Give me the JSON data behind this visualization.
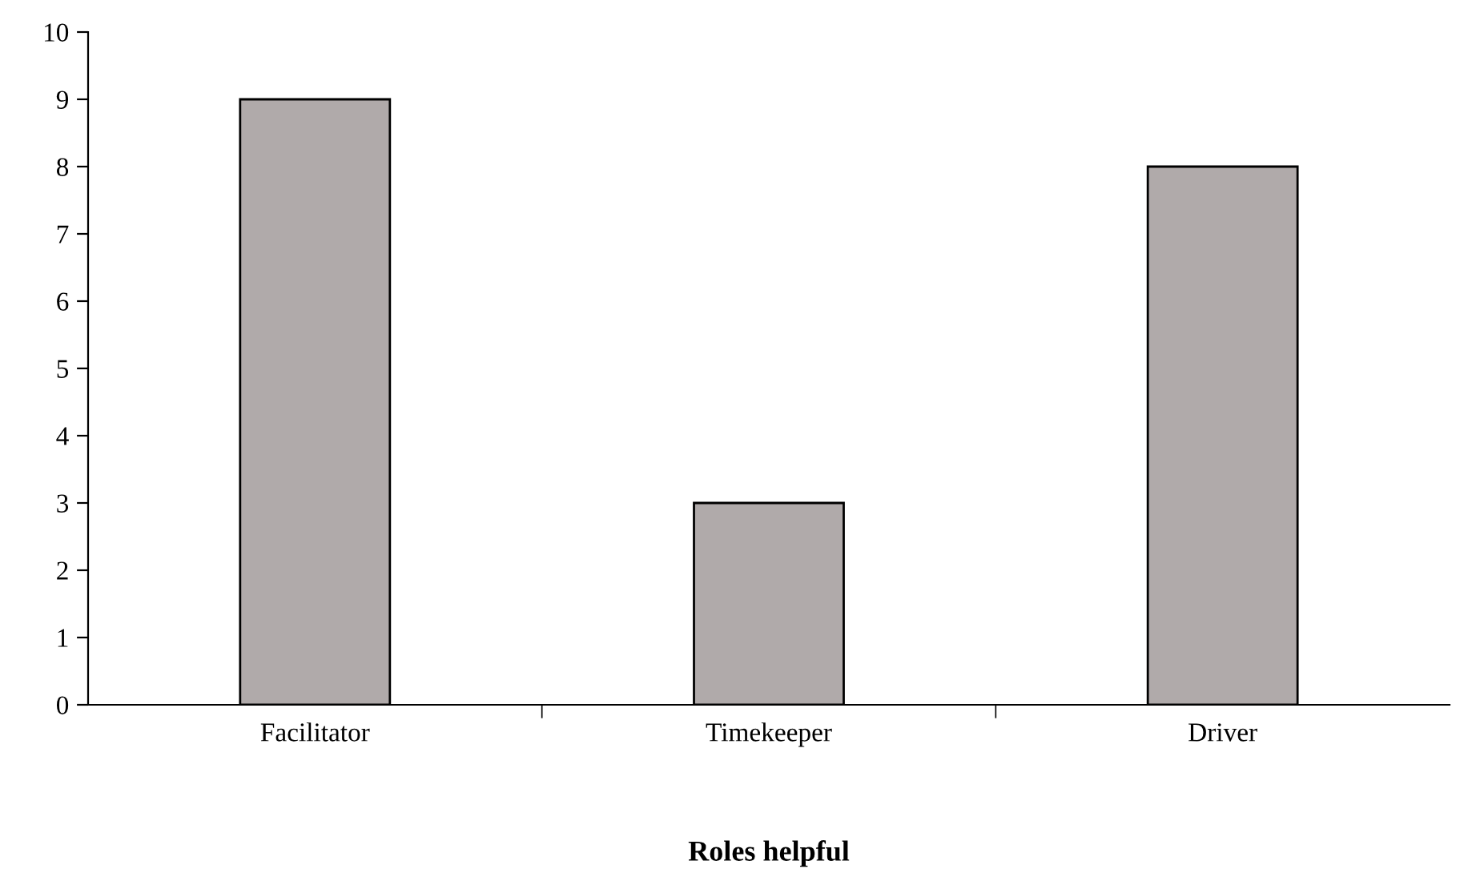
{
  "chart_data": {
    "type": "bar",
    "xlabel": "Roles helpful",
    "categories": [
      "Facilitator",
      "Timekeeper",
      "Driver"
    ],
    "values": [
      9,
      3,
      8
    ],
    "color": "#b0aaaa",
    "ylim": [
      0,
      10
    ],
    "yticks": [
      0,
      1,
      2,
      3,
      4,
      5,
      6,
      7,
      8,
      9,
      10
    ],
    "grid": false
  }
}
